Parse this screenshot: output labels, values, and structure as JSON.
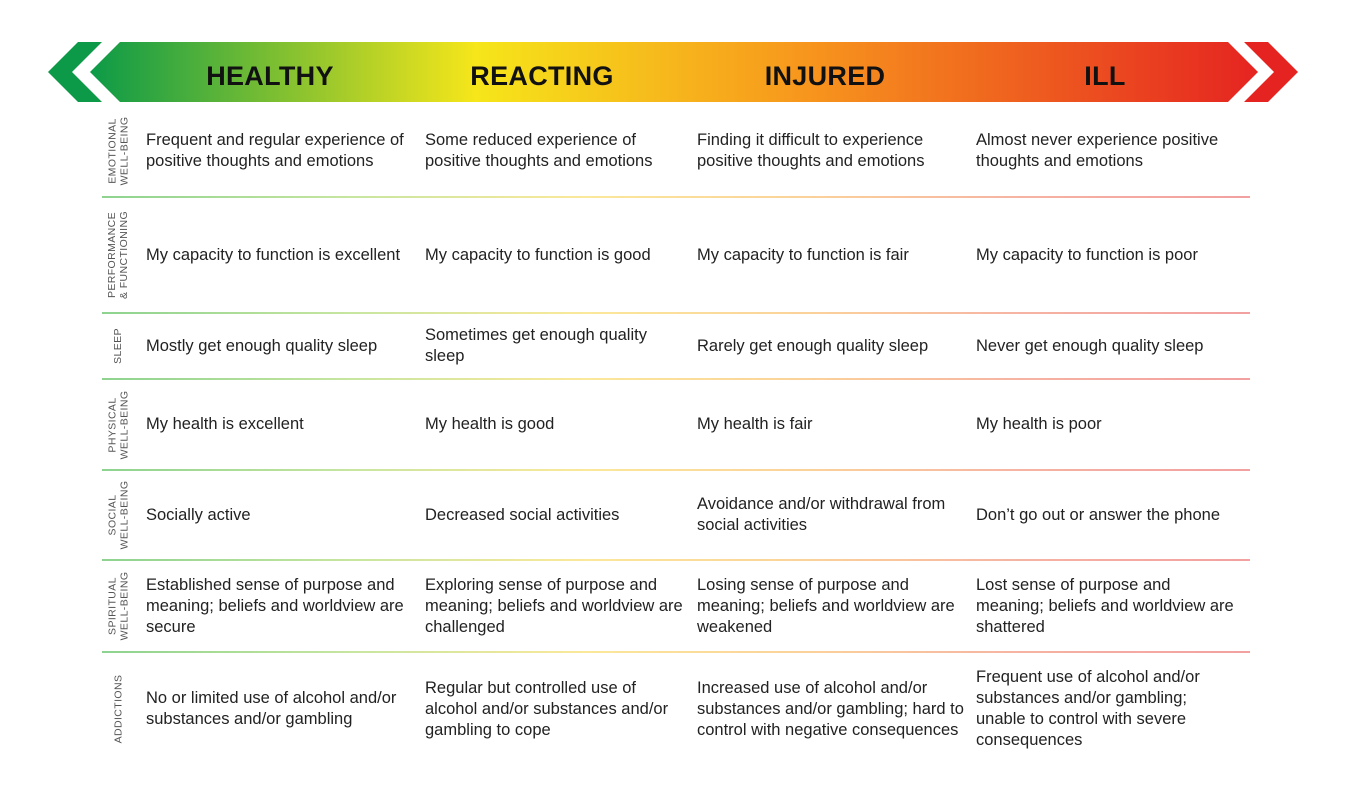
{
  "colors": {
    "green": "#0c9a48",
    "yellow": "#f6e61a",
    "orange": "#f7941d",
    "red": "#e52421"
  },
  "stages": [
    "HEALTHY",
    "REACTING",
    "INJURED",
    "ILL"
  ],
  "rows": [
    {
      "label": [
        "EMOTIONAL",
        "WELL-BEING"
      ],
      "cells": [
        "Frequent and regular experience of positive thoughts and emotions",
        "Some reduced experience of positive thoughts and emotions",
        "Finding it difficult to experience positive thoughts and emotions",
        "Almost never experience positive thoughts and emotions"
      ]
    },
    {
      "label": [
        "PERFORMANCE",
        "& FUNCTIONING"
      ],
      "cells": [
        "My capacity to function is excellent",
        "My capacity to function is good",
        "My capacity to function is fair",
        "My capacity to function is poor"
      ]
    },
    {
      "label": [
        "SLEEP"
      ],
      "cells": [
        "Mostly get enough quality sleep",
        "Sometimes get enough quality sleep",
        "Rarely get enough quality sleep",
        "Never get enough quality sleep"
      ]
    },
    {
      "label": [
        "PHYSICAL",
        "WELL-BEING"
      ],
      "cells": [
        "My health is excellent",
        "My health is good",
        "My health is fair",
        "My health is poor"
      ]
    },
    {
      "label": [
        "SOCIAL",
        "WELL-BEING"
      ],
      "cells": [
        "Socially active",
        "Decreased social activities",
        "Avoidance and/or withdrawal from social activities",
        "Don’t go out or answer the phone"
      ]
    },
    {
      "label": [
        "SPIRITUAL",
        "WELL-BEING"
      ],
      "cells": [
        "Established sense of purpose and meaning; beliefs and worldview are secure",
        "Exploring sense of purpose and meaning; beliefs and worldview are challenged",
        "Losing sense of purpose and meaning; beliefs and worldview are weakened",
        "Lost sense of purpose and meaning; beliefs and worldview are shattered"
      ]
    },
    {
      "label": [
        "ADDICTIONS"
      ],
      "cells": [
        "No or limited use of alcohol and/or substances and/or gambling",
        "Regular but controlled use of alcohol and/or substances and/or gambling to cope",
        "Increased use of alcohol and/or substances and/or gambling; hard to control with negative consequences",
        "Frequent use of alcohol and/or substances and/or gambling; unable to control with severe consequences"
      ]
    }
  ]
}
